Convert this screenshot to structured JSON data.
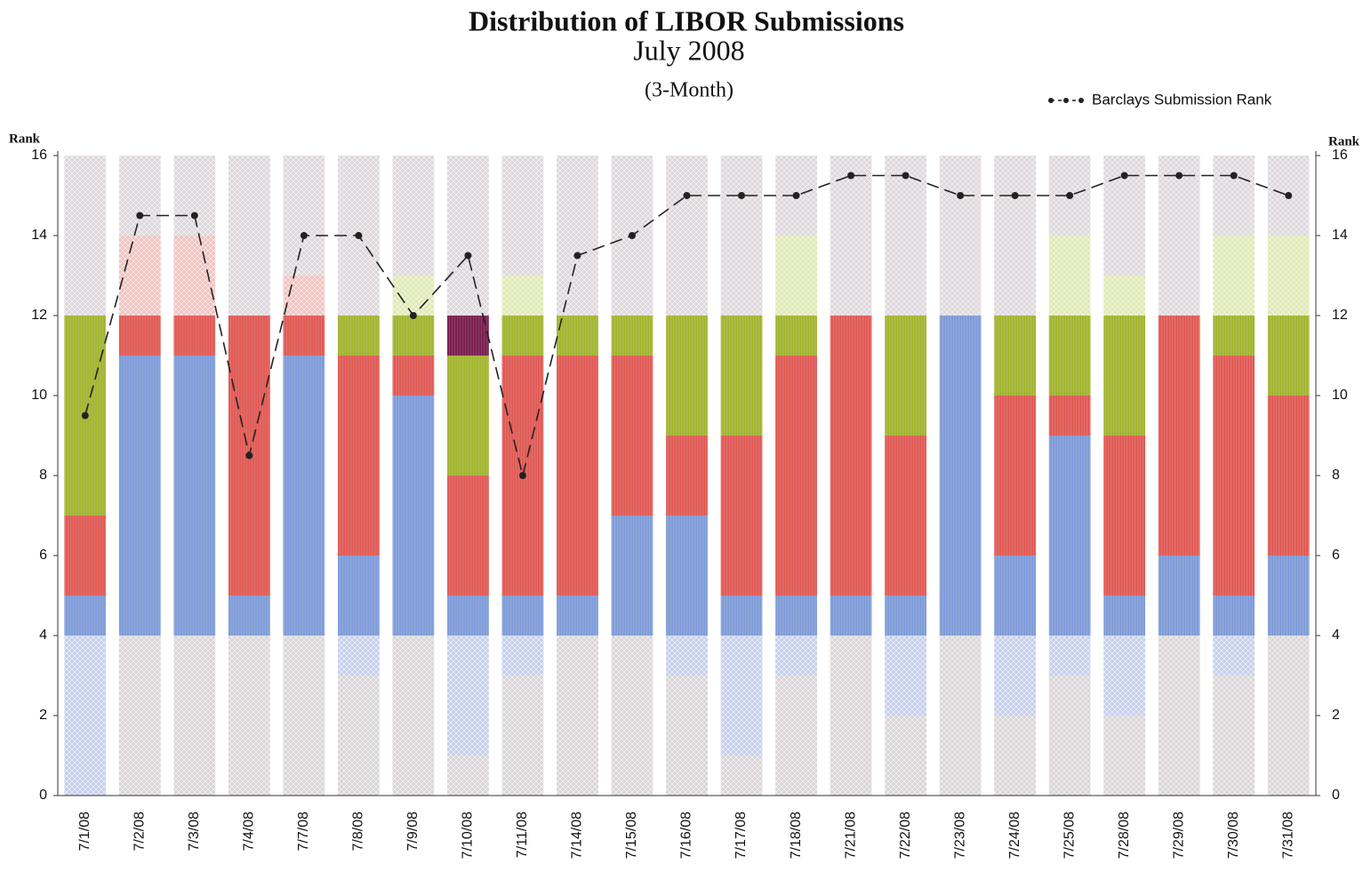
{
  "chart_data": {
    "type": "bar",
    "stacked": true,
    "title": "Distribution of LIBOR Submissions",
    "subtitle": "July 2008",
    "note": "(3-Month)",
    "y_label": "Rank",
    "y2_label": "Rank",
    "categories": [
      "7/1/08",
      "7/2/08",
      "7/3/08",
      "7/4/08",
      "7/7/08",
      "7/8/08",
      "7/9/08",
      "7/10/08",
      "7/11/08",
      "7/14/08",
      "7/15/08",
      "7/16/08",
      "7/17/08",
      "7/18/08",
      "7/21/08",
      "7/22/08",
      "7/23/08",
      "7/24/08",
      "7/25/08",
      "7/28/08",
      "7/29/08",
      "7/30/08",
      "7/31/08"
    ],
    "series": [
      {
        "color": "#d8d3d6",
        "pattern": "hatch",
        "values": [
          0,
          4,
          4,
          4,
          4,
          3,
          4,
          1,
          3,
          4,
          4,
          3,
          1,
          3,
          4,
          2,
          4,
          2,
          3,
          2,
          4,
          3,
          4
        ]
      },
      {
        "color": "#c3cdec",
        "pattern": "hatch",
        "values": [
          4,
          0,
          0,
          0,
          0,
          1,
          0,
          3,
          1,
          0,
          0,
          1,
          3,
          1,
          0,
          2,
          0,
          2,
          1,
          2,
          0,
          1,
          0
        ]
      },
      {
        "color": "#7f9cd8",
        "values": [
          1,
          7,
          7,
          1,
          7,
          2,
          6,
          1,
          1,
          1,
          3,
          3,
          1,
          1,
          1,
          1,
          8,
          2,
          5,
          1,
          2,
          1,
          2
        ]
      },
      {
        "color": "#e05a55",
        "values": [
          2,
          1,
          1,
          7,
          1,
          5,
          1,
          3,
          6,
          6,
          4,
          2,
          4,
          6,
          7,
          4,
          0,
          4,
          1,
          4,
          6,
          6,
          4
        ]
      },
      {
        "color": "#a2b530",
        "values": [
          5,
          0,
          0,
          0,
          0,
          1,
          1,
          3,
          1,
          1,
          1,
          3,
          3,
          1,
          0,
          3,
          0,
          2,
          2,
          3,
          0,
          1,
          2
        ]
      },
      {
        "color": "#7a1f4e",
        "values": [
          0,
          0,
          0,
          0,
          0,
          0,
          0,
          1,
          0,
          0,
          0,
          0,
          0,
          0,
          0,
          0,
          0,
          0,
          0,
          0,
          0,
          0,
          0
        ]
      },
      {
        "color": "#f0c0bc",
        "pattern": "hatch",
        "values": [
          0,
          2,
          2,
          0,
          1,
          0,
          0,
          0,
          0,
          0,
          0,
          0,
          0,
          0,
          0,
          0,
          0,
          0,
          0,
          0,
          0,
          0,
          0
        ]
      },
      {
        "color": "#dde8ae",
        "pattern": "hatch",
        "values": [
          0,
          0,
          0,
          0,
          0,
          0,
          1,
          0,
          1,
          0,
          0,
          0,
          0,
          2,
          0,
          0,
          0,
          0,
          2,
          1,
          0,
          2,
          2
        ]
      },
      {
        "color": "#dcd6da",
        "pattern": "hatch",
        "values": [
          4,
          2,
          2,
          4,
          3,
          4,
          3,
          4,
          3,
          4,
          4,
          4,
          4,
          2,
          4,
          4,
          4,
          4,
          2,
          3,
          4,
          2,
          2
        ]
      }
    ],
    "line": {
      "name": "Barclays Submission Rank",
      "color": "#222",
      "dash": true,
      "values": [
        9.5,
        14.5,
        14.5,
        8.5,
        14,
        14,
        12,
        13.5,
        8,
        13.5,
        14,
        15,
        15,
        15,
        15.5,
        15.5,
        15,
        15,
        15,
        15.5,
        15.5,
        15.5,
        15
      ]
    },
    "ylim": [
      0,
      16
    ],
    "yticks": [
      0,
      2,
      4,
      6,
      8,
      10,
      12,
      14,
      16
    ],
    "y2lim": [
      0,
      16
    ],
    "y2ticks": [
      0,
      2,
      4,
      6,
      8,
      10,
      12,
      14,
      16
    ],
    "legend": "top-right"
  }
}
